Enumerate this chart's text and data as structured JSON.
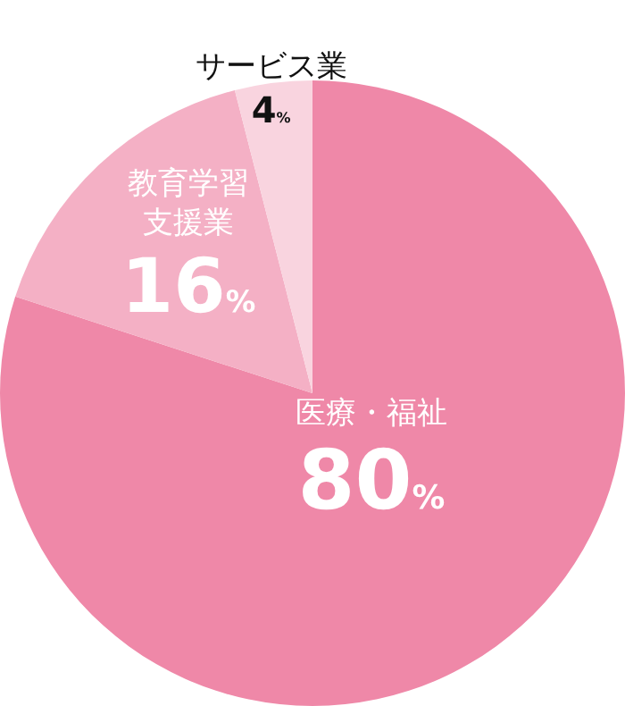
{
  "chart_data": {
    "type": "pie",
    "categories": [
      "医療・福祉",
      "教育学習支援業",
      "サービス業"
    ],
    "values": [
      80,
      16,
      4
    ],
    "colors": [
      "#ef88a8",
      "#f4b0c5",
      "#f9d4df"
    ],
    "value_labels": [
      "80%",
      "16%",
      "4%"
    ]
  }
}
